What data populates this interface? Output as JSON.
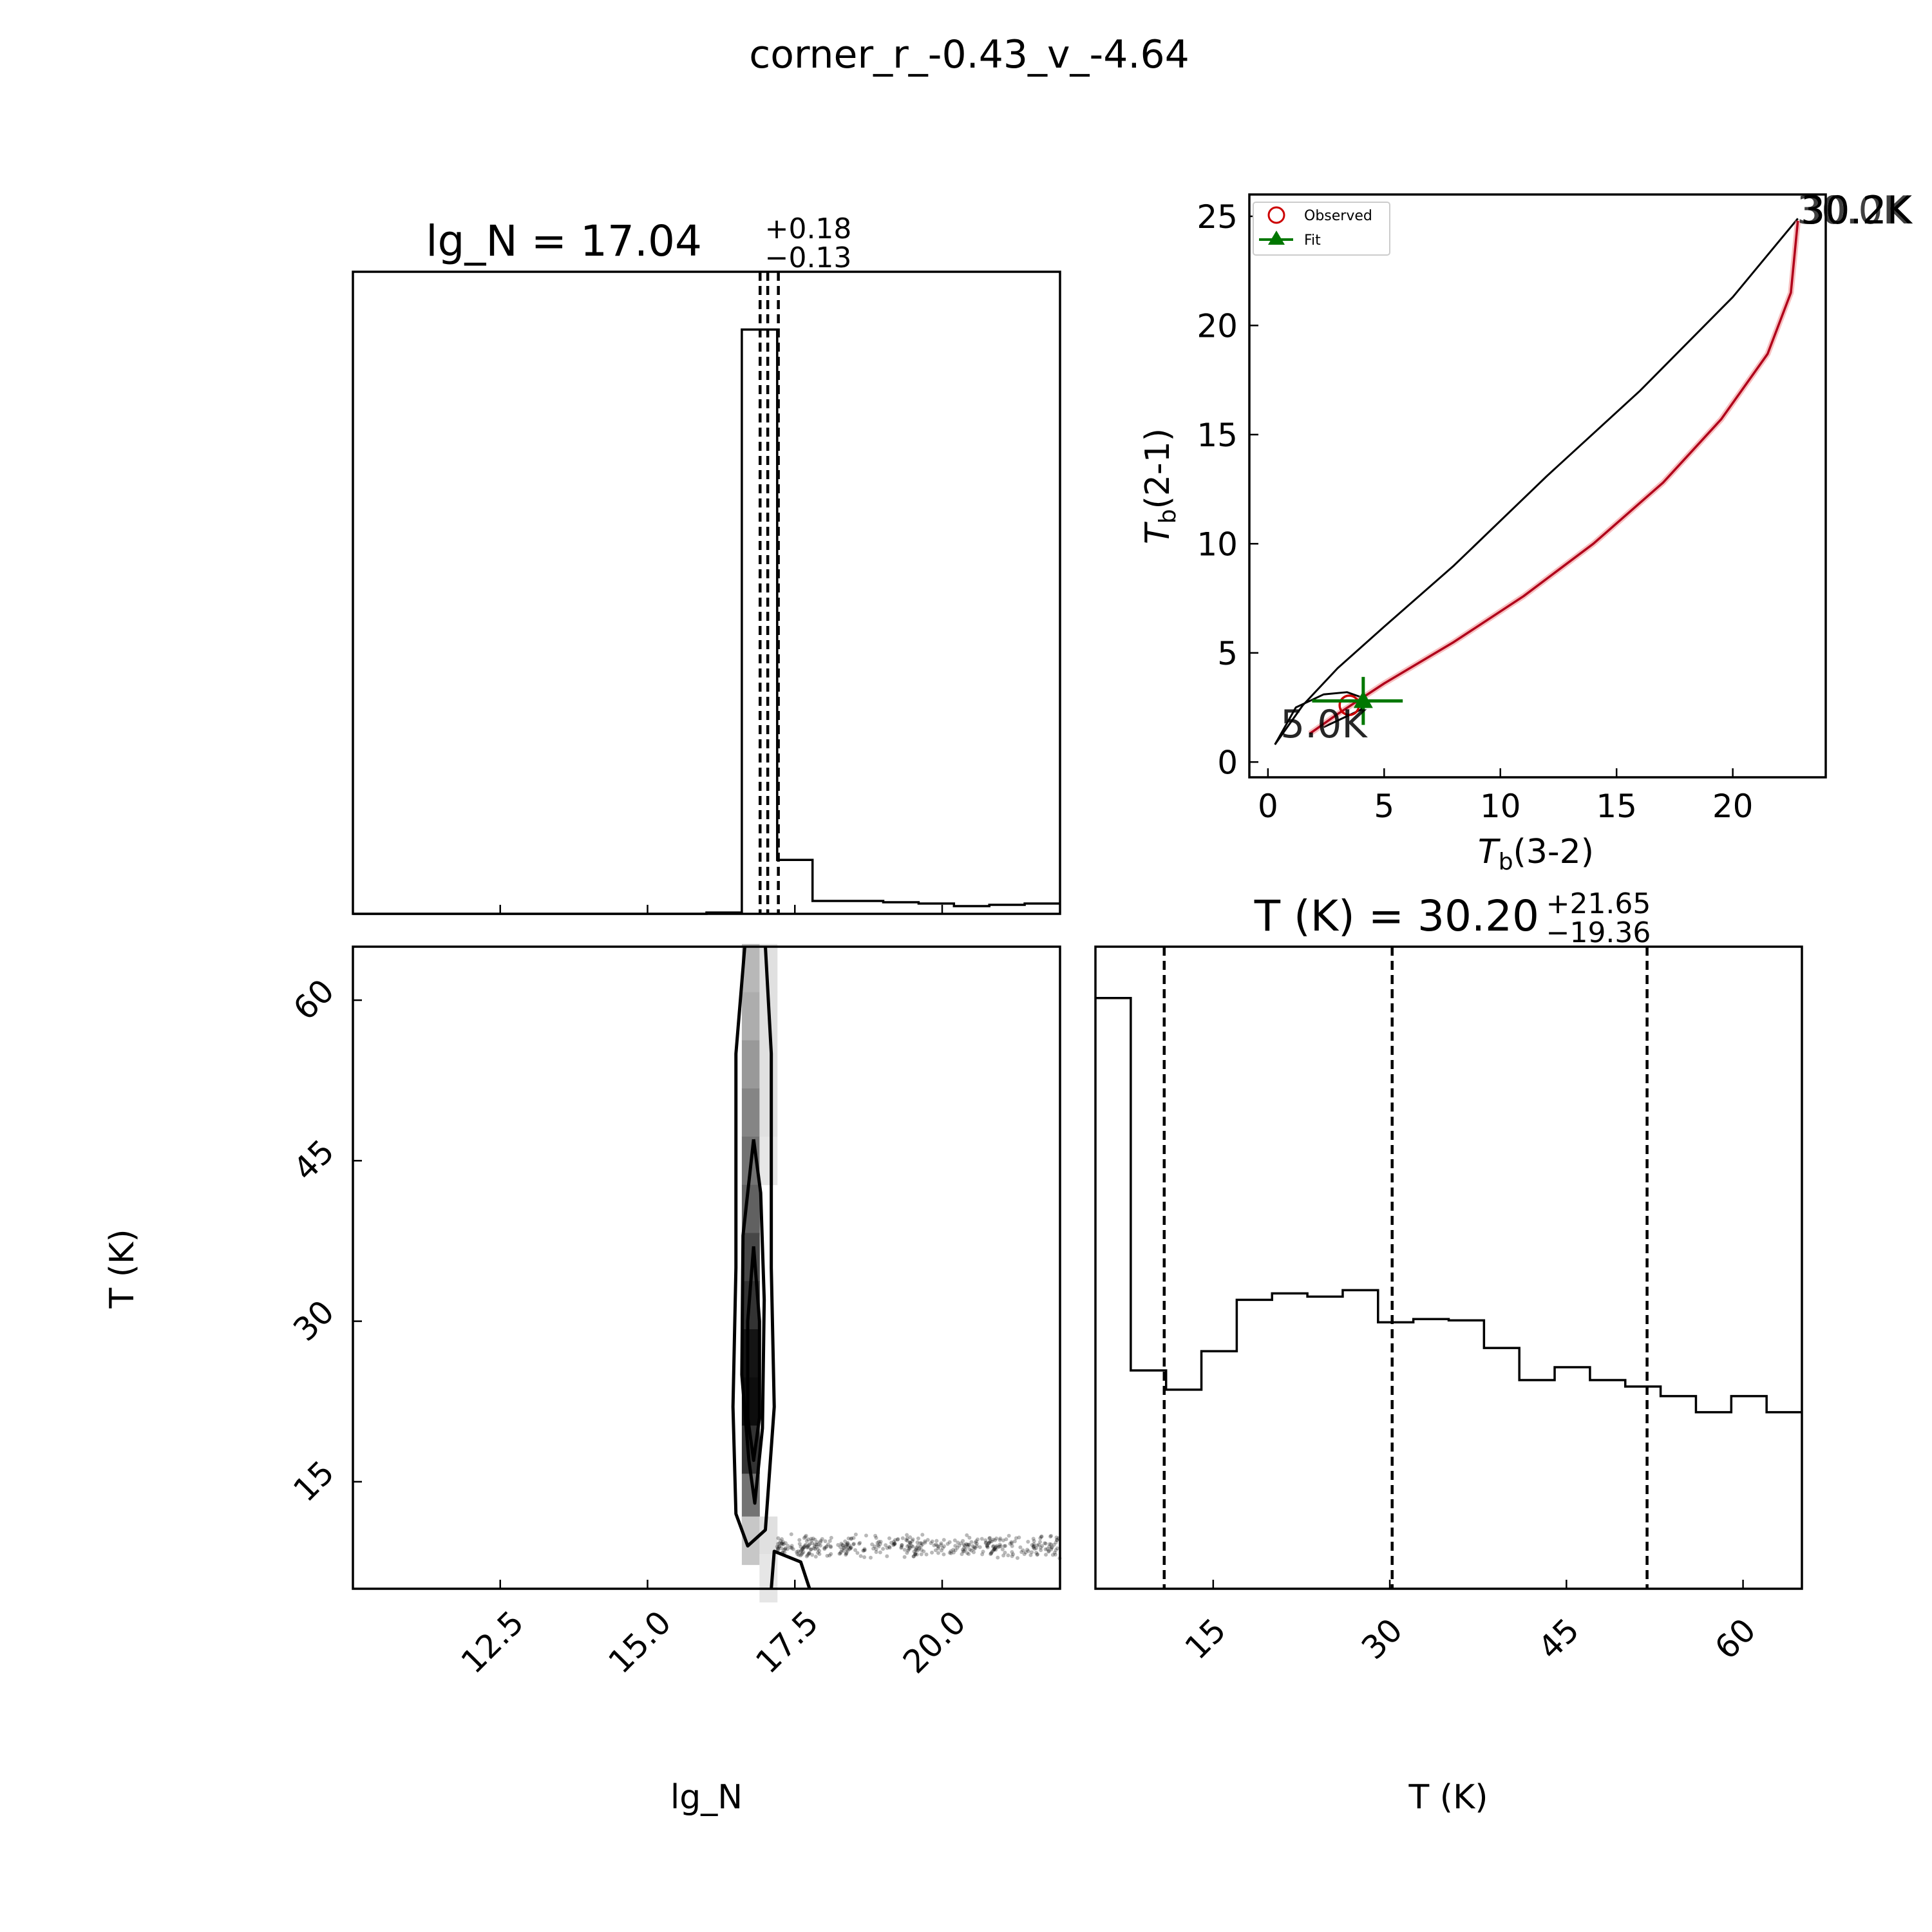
{
  "suptitle": "corner_r_-0.43_v_-4.64",
  "colors": {
    "observed": "#cc0000",
    "fit": "#007700",
    "model_curve": "#b0001a",
    "track_label_low": "#6b6bb0",
    "track_label_high": "#c8a000"
  },
  "panels": {
    "lgN_hist": {
      "title_main": "lg_N = 17.04",
      "title_sup": "+0.18",
      "title_sub": "−0.13"
    },
    "T_hist": {
      "title_main": "T (K) = 30.20",
      "title_sup": "+21.65",
      "title_sub": "−19.36",
      "xlabel": "T (K)"
    },
    "scatter2d": {
      "xlabel": "lg_N",
      "ylabel": "T (K)"
    },
    "ratio": {
      "xlabel_main": "T",
      "xlabel_sub": "b",
      "xlabel_rest": "(3-2)",
      "ylabel_main": "T",
      "ylabel_sub": "b",
      "ylabel_rest": "(2-1)",
      "legend": {
        "observed": "Observed",
        "fit": "Fit"
      },
      "track_label_low": "5.0K",
      "track_label_high": "30.0K",
      "track_label_high_shadow": "30.2K"
    }
  },
  "chart_data": [
    {
      "type": "bar",
      "panel": "lgN_hist",
      "xlim": [
        10,
        22
      ],
      "xticks": [
        12.5,
        15.0,
        17.5,
        20.0
      ],
      "bin_edges": [
        10.0,
        10.6,
        11.2,
        11.8,
        12.4,
        13.0,
        13.6,
        14.2,
        14.8,
        15.4,
        16.0,
        16.6,
        17.2,
        17.8,
        18.4,
        19.0,
        19.6,
        20.2,
        20.8,
        21.4,
        22.0
      ],
      "counts": [
        0.0,
        0.0,
        0.0,
        0.0,
        0.0,
        0.0,
        0.0,
        0.0,
        0.0,
        0.0,
        0.2,
        91.0,
        8.4,
        2.0,
        2.0,
        1.8,
        1.6,
        1.2,
        1.4,
        1.6
      ],
      "ylim": [
        0,
        100
      ],
      "quantiles": [
        16.91,
        17.04,
        17.22
      ]
    },
    {
      "type": "bar",
      "panel": "T_hist",
      "xlim": [
        5.0,
        65.0
      ],
      "xticks": [
        15,
        30,
        45,
        60
      ],
      "bin_edges": [
        5.0,
        8.0,
        11.0,
        14.0,
        17.0,
        20.0,
        23.0,
        26.0,
        29.0,
        32.0,
        35.0,
        38.0,
        41.0,
        44.0,
        47.0,
        50.0,
        53.0,
        56.0,
        59.0,
        62.0,
        65.0
      ],
      "counts": [
        92.0,
        34.0,
        31.0,
        37.0,
        45.0,
        46.0,
        45.5,
        46.5,
        41.5,
        42.0,
        41.8,
        37.5,
        32.5,
        34.5,
        32.5,
        31.5,
        30.0,
        27.5,
        30.0,
        27.5
      ],
      "ylim": [
        0,
        100
      ],
      "quantiles": [
        10.84,
        30.2,
        51.85
      ]
    },
    {
      "type": "heatmap",
      "panel": "scatter2d",
      "xlim": [
        10,
        22
      ],
      "ylim": [
        5.0,
        65.0
      ],
      "xticks": [
        12.5,
        15.0,
        17.5,
        20.0
      ],
      "yticks": [
        15,
        30,
        45,
        60
      ],
      "cells": [
        {
          "x": 16.75,
          "y": 63.0,
          "d": 0.28
        },
        {
          "x": 17.05,
          "y": 63.0,
          "d": 0.12
        },
        {
          "x": 16.75,
          "y": 58.5,
          "d": 0.32
        },
        {
          "x": 17.05,
          "y": 58.5,
          "d": 0.12
        },
        {
          "x": 16.75,
          "y": 54.0,
          "d": 0.4
        },
        {
          "x": 17.05,
          "y": 54.0,
          "d": 0.12
        },
        {
          "x": 16.75,
          "y": 49.5,
          "d": 0.48
        },
        {
          "x": 17.05,
          "y": 49.5,
          "d": 0.12
        },
        {
          "x": 16.75,
          "y": 45.0,
          "d": 0.55
        },
        {
          "x": 17.05,
          "y": 45.0,
          "d": 0.1
        },
        {
          "x": 16.75,
          "y": 40.5,
          "d": 0.62
        },
        {
          "x": 16.75,
          "y": 36.0,
          "d": 0.72
        },
        {
          "x": 16.75,
          "y": 31.5,
          "d": 0.8
        },
        {
          "x": 16.75,
          "y": 27.0,
          "d": 0.92
        },
        {
          "x": 16.75,
          "y": 22.5,
          "d": 0.95
        },
        {
          "x": 16.75,
          "y": 18.0,
          "d": 0.8
        },
        {
          "x": 16.75,
          "y": 13.5,
          "d": 0.55
        },
        {
          "x": 16.75,
          "y": 9.5,
          "d": 0.22
        },
        {
          "x": 17.05,
          "y": 9.5,
          "d": 0.12
        },
        {
          "x": 17.05,
          "y": 6.0,
          "d": 0.1
        }
      ],
      "contour_outer": [
        [
          16.65,
          65.0
        ],
        [
          16.5,
          55.0
        ],
        [
          16.5,
          35.0
        ],
        [
          16.45,
          22.0
        ],
        [
          16.5,
          12.0
        ],
        [
          16.7,
          9.0
        ],
        [
          17.0,
          10.5
        ],
        [
          17.15,
          22.0
        ],
        [
          17.1,
          35.0
        ],
        [
          17.1,
          55.0
        ],
        [
          17.0,
          65.0
        ]
      ],
      "contour_inner": [
        [
          16.8,
          47.0
        ],
        [
          16.62,
          38.0
        ],
        [
          16.6,
          25.0
        ],
        [
          16.72,
          17.0
        ],
        [
          16.82,
          13.0
        ],
        [
          16.95,
          20.0
        ],
        [
          16.98,
          32.0
        ],
        [
          16.92,
          42.0
        ],
        [
          16.8,
          47.0
        ]
      ],
      "contour_core": [
        [
          16.8,
          37.0
        ],
        [
          16.7,
          30.0
        ],
        [
          16.7,
          21.0
        ],
        [
          16.8,
          17.0
        ],
        [
          16.9,
          21.0
        ],
        [
          16.9,
          30.0
        ],
        [
          16.8,
          37.0
        ]
      ],
      "contour_tail": [
        [
          17.1,
          5.0
        ],
        [
          17.15,
          8.5
        ],
        [
          17.6,
          7.5
        ],
        [
          17.75,
          5.0
        ]
      ],
      "tail_band": {
        "x_from": 17.2,
        "x_to": 22.0,
        "y_center": 9.0,
        "y_spread": 1.2
      }
    },
    {
      "type": "line",
      "panel": "ratio",
      "xlim": [
        -0.8,
        24.0
      ],
      "ylim": [
        -0.7,
        26.0
      ],
      "xticks": [
        0,
        5,
        10,
        15,
        20
      ],
      "yticks": [
        0,
        5,
        10,
        15,
        20,
        25
      ],
      "series": [
        {
          "kind": "black_track",
          "x": [
            0.3,
            1.5,
            3.0,
            5.0,
            8.0,
            12.0,
            16.0,
            20.0,
            22.8
          ],
          "y": [
            0.8,
            2.6,
            4.3,
            6.2,
            9.0,
            13.1,
            17.0,
            21.3,
            24.9
          ]
        },
        {
          "kind": "black_loop",
          "x": [
            0.3,
            1.2,
            2.4,
            3.4,
            4.2,
            4.0,
            3.2,
            2.4
          ],
          "y": [
            0.8,
            2.5,
            3.1,
            3.2,
            2.9,
            2.4,
            2.0,
            1.6
          ]
        },
        {
          "kind": "red_model",
          "x": [
            1.8,
            3.0,
            5.0,
            8.0,
            11.0,
            14.0,
            17.0,
            19.5,
            21.5,
            22.5,
            22.8
          ],
          "y": [
            1.3,
            2.2,
            3.6,
            5.5,
            7.6,
            10.0,
            12.8,
            15.7,
            18.7,
            21.5,
            24.8
          ]
        }
      ],
      "observed": {
        "x": 3.5,
        "y": 2.6
      },
      "fit": {
        "x": 4.1,
        "y": 2.8,
        "xerr": [
          2.2,
          1.7
        ],
        "yerr": [
          1.1,
          1.1
        ]
      }
    }
  ]
}
